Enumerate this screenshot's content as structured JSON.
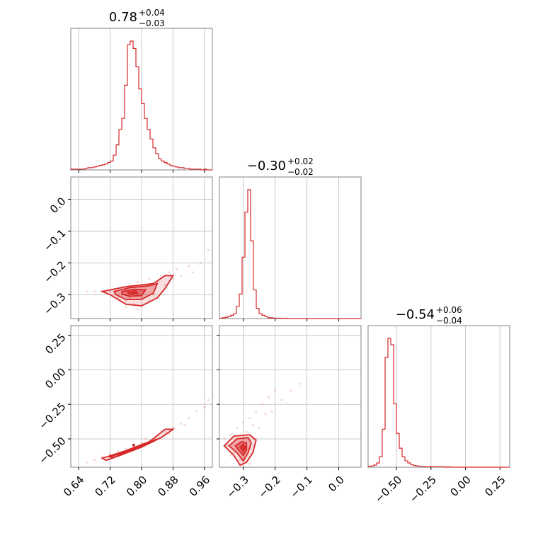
{
  "chart_data": {
    "type": "corner",
    "color": "#d62728",
    "parameters": [
      {
        "id": "p0",
        "range": [
          0.62,
          0.98
        ],
        "ticks": [
          0.64,
          0.72,
          0.8,
          0.88,
          0.96
        ],
        "tick_labels": [
          "0.64",
          "0.72",
          "0.80",
          "0.88",
          "0.96"
        ],
        "title": {
          "main": "0.78",
          "plus": "+0.04",
          "minus": "−0.03"
        }
      },
      {
        "id": "p1",
        "range": [
          -0.375,
          0.07
        ],
        "ticks": [
          -0.3,
          -0.2,
          -0.1,
          0.0
        ],
        "tick_labels": [
          "−0.3",
          "−0.2",
          "−0.1",
          "0.0"
        ],
        "title": {
          "main": "−0.30",
          "plus": "+0.02",
          "minus": "−0.02"
        }
      },
      {
        "id": "p2",
        "range": [
          -0.705,
          0.32
        ],
        "ticks": [
          -0.5,
          -0.25,
          0.0,
          0.25
        ],
        "tick_labels": [
          "−0.50",
          "−0.25",
          "0.00",
          "0.25"
        ],
        "title": {
          "main": "−0.54",
          "plus": "+0.06",
          "minus": "−0.04"
        }
      }
    ],
    "histograms": [
      {
        "param": 0,
        "bin_start": 0.62,
        "bin_width": 0.0072,
        "counts": [
          1,
          1,
          1,
          1,
          1,
          2,
          3,
          3,
          4,
          5,
          6,
          7,
          8,
          10,
          12,
          20,
          34,
          55,
          70,
          115,
          170,
          175,
          165,
          140,
          110,
          90,
          70,
          55,
          42,
          30,
          22,
          15,
          12,
          10,
          8,
          6,
          5,
          4,
          3,
          3,
          2,
          2,
          1,
          1,
          1,
          1,
          0,
          1,
          0,
          0
        ]
      },
      {
        "param": 1,
        "bin_start": -0.375,
        "bin_width": 0.0089,
        "counts": [
          1,
          2,
          3,
          5,
          8,
          12,
          30,
          60,
          150,
          260,
          315,
          190,
          70,
          25,
          12,
          8,
          5,
          2,
          2,
          1,
          1,
          1,
          0,
          1,
          0,
          0,
          0,
          0,
          0,
          0,
          0,
          0,
          0,
          0,
          0,
          0,
          0,
          0,
          0,
          0,
          0,
          0,
          0,
          0,
          0,
          0,
          0,
          0,
          0,
          0
        ]
      },
      {
        "param": 2,
        "bin_start": -0.705,
        "bin_width": 0.0205,
        "counts": [
          2,
          3,
          5,
          10,
          25,
          90,
          260,
          305,
          290,
          150,
          80,
          45,
          25,
          15,
          10,
          6,
          4,
          3,
          2,
          2,
          1,
          1,
          1,
          1,
          1,
          1,
          1,
          0,
          1,
          0,
          0,
          0,
          0,
          0,
          0,
          0,
          0,
          0,
          0,
          0,
          0,
          0,
          0,
          0,
          0,
          0,
          0,
          0,
          0,
          0
        ]
      }
    ],
    "scatter_panels": [
      {
        "x": 0,
        "y": 1,
        "center": [
          0.78,
          -0.295
        ],
        "points": [
          [
            0.66,
            -0.29
          ],
          [
            0.68,
            -0.29
          ],
          [
            0.7,
            -0.288
          ],
          [
            0.72,
            -0.29
          ],
          [
            0.73,
            -0.3
          ],
          [
            0.74,
            -0.31
          ],
          [
            0.75,
            -0.28
          ],
          [
            0.76,
            -0.32
          ],
          [
            0.77,
            -0.27
          ],
          [
            0.78,
            -0.33
          ],
          [
            0.79,
            -0.26
          ],
          [
            0.8,
            -0.31
          ],
          [
            0.81,
            -0.28
          ],
          [
            0.82,
            -0.25
          ],
          [
            0.83,
            -0.3
          ],
          [
            0.84,
            -0.26
          ],
          [
            0.85,
            -0.24
          ],
          [
            0.86,
            -0.27
          ],
          [
            0.87,
            -0.23
          ],
          [
            0.88,
            -0.25
          ],
          [
            0.89,
            -0.22
          ],
          [
            0.9,
            -0.24
          ],
          [
            0.92,
            -0.21
          ],
          [
            0.93,
            -0.23
          ],
          [
            0.95,
            -0.2
          ],
          [
            0.97,
            -0.16
          ],
          [
            0.76,
            -0.34
          ],
          [
            0.79,
            -0.345
          ],
          [
            0.82,
            -0.32
          ],
          [
            0.8,
            -0.27
          ],
          [
            0.75,
            -0.3
          ],
          [
            0.77,
            -0.31
          ]
        ],
        "contours": [
          [
            [
              0.7,
              -0.29
            ],
            [
              0.76,
              -0.275
            ],
            [
              0.83,
              -0.265
            ],
            [
              0.86,
              -0.24
            ],
            [
              0.88,
              -0.24
            ],
            [
              0.86,
              -0.28
            ],
            [
              0.84,
              -0.31
            ],
            [
              0.8,
              -0.335
            ],
            [
              0.76,
              -0.33
            ],
            [
              0.72,
              -0.3
            ]
          ],
          [
            [
              0.73,
              -0.29
            ],
            [
              0.77,
              -0.278
            ],
            [
              0.82,
              -0.272
            ],
            [
              0.84,
              -0.265
            ],
            [
              0.83,
              -0.295
            ],
            [
              0.8,
              -0.315
            ],
            [
              0.76,
              -0.315
            ],
            [
              0.735,
              -0.3
            ]
          ],
          [
            [
              0.75,
              -0.29
            ],
            [
              0.78,
              -0.283
            ],
            [
              0.81,
              -0.285
            ],
            [
              0.8,
              -0.303
            ],
            [
              0.77,
              -0.305
            ],
            [
              0.75,
              -0.298
            ]
          ],
          [
            [
              0.765,
              -0.292
            ],
            [
              0.785,
              -0.288
            ],
            [
              0.79,
              -0.296
            ],
            [
              0.77,
              -0.298
            ]
          ]
        ]
      },
      {
        "x": 0,
        "y": 2,
        "center": [
          0.78,
          -0.545
        ],
        "points": [
          [
            0.66,
            -0.67
          ],
          [
            0.68,
            -0.65
          ],
          [
            0.7,
            -0.63
          ],
          [
            0.72,
            -0.61
          ],
          [
            0.74,
            -0.59
          ],
          [
            0.76,
            -0.57
          ],
          [
            0.78,
            -0.55
          ],
          [
            0.8,
            -0.53
          ],
          [
            0.82,
            -0.51
          ],
          [
            0.84,
            -0.48
          ],
          [
            0.86,
            -0.45
          ],
          [
            0.88,
            -0.42
          ],
          [
            0.9,
            -0.39
          ],
          [
            0.92,
            -0.35
          ],
          [
            0.94,
            -0.3
          ],
          [
            0.96,
            -0.27
          ],
          [
            0.97,
            -0.22
          ],
          [
            0.75,
            -0.6
          ],
          [
            0.79,
            -0.56
          ],
          [
            0.83,
            -0.52
          ],
          [
            0.87,
            -0.46
          ],
          [
            0.91,
            -0.4
          ],
          [
            0.81,
            -0.5
          ],
          [
            0.85,
            -0.44
          ]
        ],
        "contours": [
          [
            [
              0.7,
              -0.64
            ],
            [
              0.76,
              -0.585
            ],
            [
              0.82,
              -0.52
            ],
            [
              0.86,
              -0.43
            ],
            [
              0.88,
              -0.43
            ],
            [
              0.85,
              -0.49
            ],
            [
              0.8,
              -0.56
            ],
            [
              0.74,
              -0.625
            ],
            [
              0.71,
              -0.655
            ]
          ],
          [
            [
              0.72,
              -0.63
            ],
            [
              0.77,
              -0.575
            ],
            [
              0.82,
              -0.525
            ],
            [
              0.84,
              -0.5
            ],
            [
              0.81,
              -0.535
            ],
            [
              0.76,
              -0.59
            ],
            [
              0.73,
              -0.635
            ]
          ],
          [
            [
              0.745,
              -0.605
            ],
            [
              0.78,
              -0.565
            ],
            [
              0.81,
              -0.535
            ],
            [
              0.795,
              -0.56
            ],
            [
              0.76,
              -0.6
            ]
          ],
          [
            [
              0.765,
              -0.585
            ],
            [
              0.79,
              -0.56
            ],
            [
              0.78,
              -0.575
            ]
          ]
        ]
      },
      {
        "x": 1,
        "y": 2,
        "center": [
          -0.295,
          -0.56
        ],
        "points": [
          [
            -0.36,
            -0.5
          ],
          [
            -0.35,
            -0.55
          ],
          [
            -0.34,
            -0.47
          ],
          [
            -0.33,
            -0.6
          ],
          [
            -0.32,
            -0.42
          ],
          [
            -0.31,
            -0.65
          ],
          [
            -0.3,
            -0.38
          ],
          [
            -0.29,
            -0.45
          ],
          [
            -0.28,
            -0.35
          ],
          [
            -0.27,
            -0.4
          ],
          [
            -0.26,
            -0.3
          ],
          [
            -0.25,
            -0.42
          ],
          [
            -0.24,
            -0.25
          ],
          [
            -0.23,
            -0.32
          ],
          [
            -0.22,
            -0.2
          ],
          [
            -0.21,
            -0.3
          ],
          [
            -0.2,
            -0.15
          ],
          [
            -0.18,
            -0.22
          ],
          [
            -0.15,
            -0.15
          ],
          [
            -0.12,
            -0.1
          ],
          [
            -0.3,
            -0.7
          ],
          [
            -0.28,
            -0.68
          ],
          [
            -0.34,
            -0.62
          ],
          [
            -0.26,
            -0.5
          ]
        ],
        "contours": [
          [
            [
              -0.36,
              -0.55
            ],
            [
              -0.33,
              -0.48
            ],
            [
              -0.28,
              -0.47
            ],
            [
              -0.26,
              -0.51
            ],
            [
              -0.27,
              -0.6
            ],
            [
              -0.29,
              -0.67
            ],
            [
              -0.31,
              -0.69
            ],
            [
              -0.33,
              -0.62
            ]
          ],
          [
            [
              -0.345,
              -0.55
            ],
            [
              -0.32,
              -0.5
            ],
            [
              -0.285,
              -0.49
            ],
            [
              -0.275,
              -0.53
            ],
            [
              -0.285,
              -0.6
            ],
            [
              -0.3,
              -0.66
            ],
            [
              -0.32,
              -0.6
            ]
          ],
          [
            [
              -0.325,
              -0.55
            ],
            [
              -0.305,
              -0.52
            ],
            [
              -0.29,
              -0.53
            ],
            [
              -0.29,
              -0.58
            ],
            [
              -0.3,
              -0.62
            ],
            [
              -0.315,
              -0.58
            ]
          ],
          [
            [
              -0.31,
              -0.56
            ],
            [
              -0.3,
              -0.54
            ],
            [
              -0.295,
              -0.57
            ],
            [
              -0.3,
              -0.59
            ]
          ]
        ]
      }
    ]
  }
}
